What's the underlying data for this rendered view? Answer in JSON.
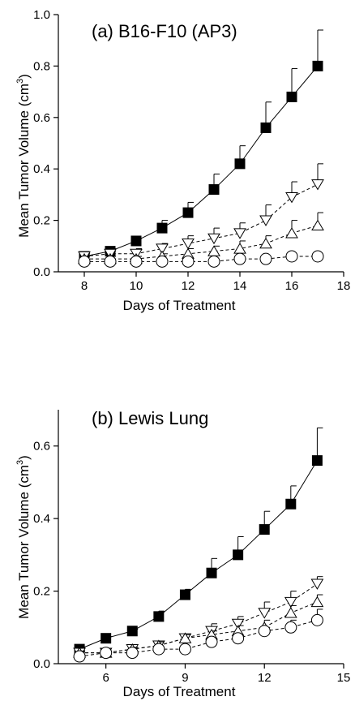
{
  "chart_data": [
    {
      "type": "line",
      "title": "(a) B16-F10 (AP3)",
      "xlabel": "Days of Treatment",
      "ylabel": "Mean Tumor Volume (cm3)",
      "ylabel_main": "Mean Tumor Volume (cm",
      "ylabel_sup": "3",
      "ylabel_end": ")",
      "xlim": [
        7,
        18
      ],
      "ylim": [
        0,
        1.0
      ],
      "xticks": [
        8,
        10,
        12,
        14,
        16,
        18
      ],
      "yticks": [
        0.0,
        0.2,
        0.4,
        0.6,
        0.8,
        1.0
      ],
      "ytick_labels": [
        "0.0",
        "0.2",
        "0.4",
        "0.6",
        "0.8",
        "1.0"
      ],
      "series": [
        {
          "marker": "square-filled",
          "x": [
            8,
            9,
            10,
            11,
            12,
            13,
            14,
            15,
            16,
            17
          ],
          "y": [
            0.06,
            0.08,
            0.12,
            0.17,
            0.23,
            0.32,
            0.42,
            0.56,
            0.68,
            0.8
          ],
          "err": [
            0.01,
            0.01,
            0.01,
            0.03,
            0.04,
            0.06,
            0.07,
            0.1,
            0.11,
            0.14
          ]
        },
        {
          "marker": "triangle-down-open",
          "x": [
            8,
            9,
            10,
            11,
            12,
            13,
            14,
            15,
            16,
            17
          ],
          "y": [
            0.06,
            0.07,
            0.07,
            0.09,
            0.11,
            0.13,
            0.15,
            0.2,
            0.29,
            0.34
          ],
          "err": [
            0.01,
            0.01,
            0.02,
            0.02,
            0.03,
            0.04,
            0.04,
            0.06,
            0.06,
            0.08
          ]
        },
        {
          "marker": "triangle-up-open",
          "x": [
            8,
            9,
            10,
            11,
            12,
            13,
            14,
            15,
            16,
            17
          ],
          "y": [
            0.05,
            0.05,
            0.05,
            0.06,
            0.07,
            0.08,
            0.09,
            0.11,
            0.15,
            0.18
          ],
          "err": [
            0.01,
            0.01,
            0.01,
            0.01,
            0.02,
            0.02,
            0.03,
            0.03,
            0.05,
            0.05
          ]
        },
        {
          "marker": "circle-open",
          "x": [
            8,
            9,
            10,
            11,
            12,
            13,
            14,
            15,
            16,
            17
          ],
          "y": [
            0.04,
            0.04,
            0.04,
            0.04,
            0.04,
            0.04,
            0.05,
            0.05,
            0.06,
            0.06
          ],
          "err": [
            0.005,
            0.005,
            0.005,
            0.005,
            0.005,
            0.005,
            0.005,
            0.005,
            0.005,
            0.005
          ]
        }
      ]
    },
    {
      "type": "line",
      "title": "(b) Lewis Lung",
      "xlabel": "Days of Treatment",
      "ylabel": "Mean Tumor Volume (cm3)",
      "ylabel_main": "Mean Tumor Volume (cm",
      "ylabel_sup": "3",
      "ylabel_end": ")",
      "xlim": [
        4.2,
        15
      ],
      "ylim": [
        0,
        0.7
      ],
      "xticks": [
        6,
        9,
        12,
        15
      ],
      "yticks": [
        0.0,
        0.2,
        0.4,
        0.6
      ],
      "ytick_labels": [
        "0.0",
        "0.2",
        "0.4",
        "0.6"
      ],
      "series": [
        {
          "marker": "square-filled",
          "x": [
            5,
            6,
            7,
            8,
            9,
            10,
            11,
            12,
            13,
            14
          ],
          "y": [
            0.04,
            0.07,
            0.09,
            0.13,
            0.19,
            0.25,
            0.3,
            0.37,
            0.44,
            0.56
          ],
          "err": [
            0.005,
            0.005,
            0.005,
            0.015,
            0.015,
            0.04,
            0.05,
            0.05,
            0.05,
            0.09
          ]
        },
        {
          "marker": "triangle-down-open",
          "x": [
            5,
            6,
            7,
            8,
            9,
            10,
            11,
            12,
            13,
            14
          ],
          "y": [
            0.03,
            0.03,
            0.04,
            0.05,
            0.07,
            0.09,
            0.11,
            0.14,
            0.17,
            0.22
          ],
          "err": [
            0.005,
            0.005,
            0.005,
            0.01,
            0.01,
            0.02,
            0.02,
            0.03,
            0.03,
            0.02
          ]
        },
        {
          "marker": "triangle-up-open",
          "x": [
            5,
            6,
            7,
            8,
            9,
            10,
            11,
            12,
            13,
            14
          ],
          "y": [
            0.03,
            0.03,
            0.04,
            0.05,
            0.07,
            0.08,
            0.09,
            0.1,
            0.14,
            0.17
          ],
          "err": [
            0.005,
            0.005,
            0.005,
            0.01,
            0.01,
            0.01,
            0.015,
            0.02,
            0.02,
            0.02
          ]
        },
        {
          "marker": "circle-open",
          "x": [
            5,
            6,
            7,
            8,
            9,
            10,
            11,
            12,
            13,
            14
          ],
          "y": [
            0.02,
            0.03,
            0.03,
            0.04,
            0.04,
            0.06,
            0.07,
            0.09,
            0.1,
            0.12
          ],
          "err": [
            0.005,
            0.005,
            0.005,
            0.005,
            0.005,
            0.01,
            0.01,
            0.01,
            0.02,
            0.03
          ]
        }
      ]
    }
  ]
}
